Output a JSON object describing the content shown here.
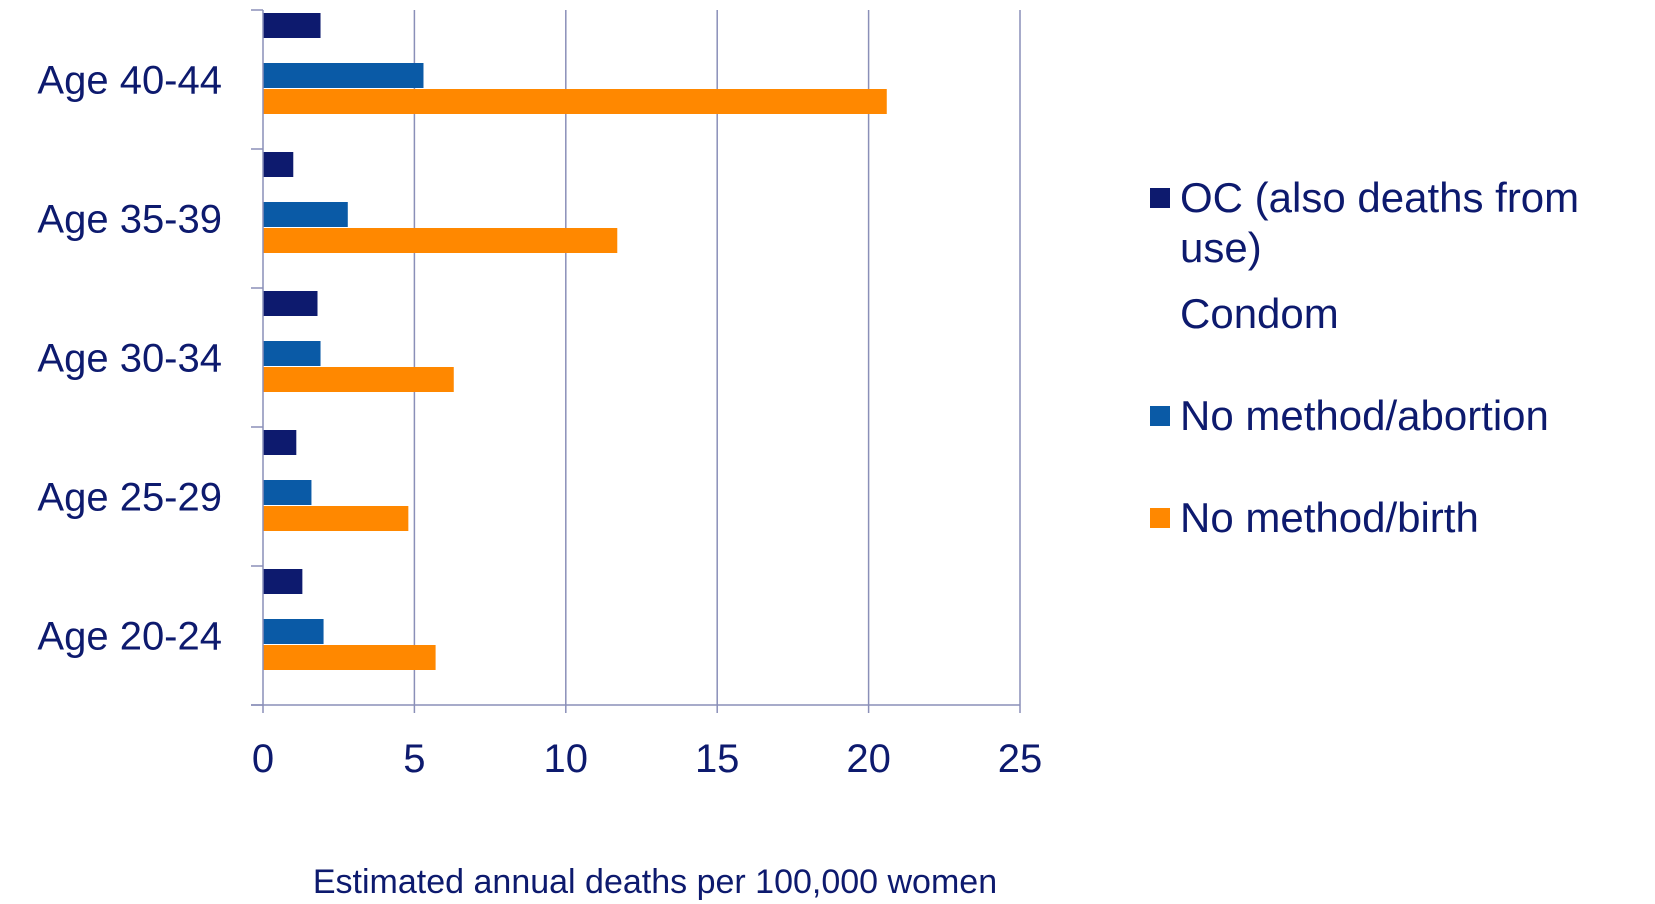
{
  "chart_data": {
    "type": "bar",
    "orientation": "horizontal",
    "categories": [
      "Age 20-24",
      "Age 25-29",
      "Age 30-34",
      "Age 35-39",
      "Age 40-44"
    ],
    "series": [
      {
        "name": "OC (also deaths from use)",
        "color": "#0d1a6e",
        "values": [
          1.3,
          1.1,
          1.8,
          1.0,
          1.9
        ]
      },
      {
        "name": "Condom",
        "color": null,
        "values": [
          0,
          0,
          0,
          0,
          0
        ]
      },
      {
        "name": "No method/abortion",
        "color": "#0a5aa6",
        "values": [
          2.0,
          1.6,
          1.9,
          2.8,
          5.3
        ]
      },
      {
        "name": "No method/birth",
        "color": "#ff8800",
        "values": [
          5.7,
          4.8,
          6.3,
          11.7,
          20.6
        ]
      }
    ],
    "xlabel": "Estimated annual deaths per 100,000 women",
    "ylabel": "",
    "xlim": [
      0,
      25
    ],
    "xticks": [
      "0",
      "5",
      "10",
      "15",
      "20",
      "25"
    ],
    "grid": "vertical",
    "legend_position": "right"
  }
}
